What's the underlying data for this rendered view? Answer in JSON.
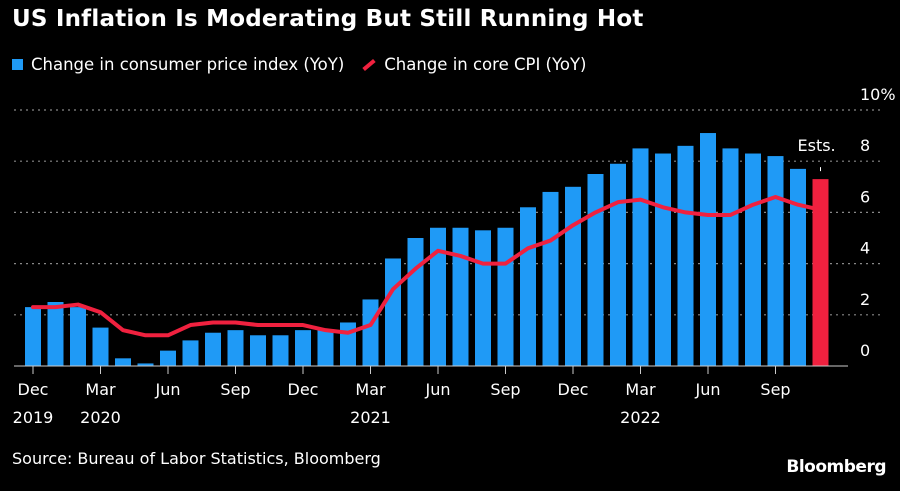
{
  "title": "US Inflation Is Moderating But Still Running Hot",
  "legend": {
    "bar_label": "Change in consumer price index (YoY)",
    "line_label": "Change in core CPI (YoY)"
  },
  "source": "Source: Bureau of Labor Statistics, Bloomberg",
  "logo": "Bloomberg",
  "colors": {
    "bar": "#1f9af6",
    "line": "#f0213f",
    "estimate": "#f0213f"
  },
  "chart_data": {
    "type": "bar",
    "title": "US Inflation Is Moderating But Still Running Hot",
    "months": [
      "Dec 2019",
      "Jan 2020",
      "Feb 2020",
      "Mar 2020",
      "Apr 2020",
      "May 2020",
      "Jun 2020",
      "Jul 2020",
      "Aug 2020",
      "Sep 2020",
      "Oct 2020",
      "Nov 2020",
      "Dec 2020",
      "Jan 2021",
      "Feb 2021",
      "Mar 2021",
      "Apr 2021",
      "May 2021",
      "Jun 2021",
      "Jul 2021",
      "Aug 2021",
      "Sep 2021",
      "Oct 2021",
      "Nov 2021",
      "Dec 2021",
      "Jan 2022",
      "Feb 2022",
      "Mar 2022",
      "Apr 2022",
      "May 2022",
      "Jun 2022",
      "Jul 2022",
      "Aug 2022",
      "Sep 2022",
      "Oct 2022",
      "Nov 2022"
    ],
    "series": [
      {
        "name": "Change in consumer price index (YoY)",
        "type": "bar",
        "values": [
          2.3,
          2.5,
          2.3,
          1.5,
          0.3,
          0.1,
          0.6,
          1.0,
          1.3,
          1.4,
          1.2,
          1.2,
          1.4,
          1.4,
          1.7,
          2.6,
          4.2,
          5.0,
          5.4,
          5.4,
          5.3,
          5.4,
          6.2,
          6.8,
          7.0,
          7.5,
          7.9,
          8.5,
          8.3,
          8.6,
          9.1,
          8.5,
          8.3,
          8.2,
          7.7,
          7.3
        ]
      },
      {
        "name": "Change in core CPI (YoY)",
        "type": "line",
        "values": [
          2.3,
          2.3,
          2.4,
          2.1,
          1.4,
          1.2,
          1.2,
          1.6,
          1.7,
          1.7,
          1.6,
          1.6,
          1.6,
          1.4,
          1.3,
          1.6,
          3.0,
          3.8,
          4.5,
          4.3,
          4.0,
          4.0,
          4.6,
          4.9,
          5.5,
          6.0,
          6.4,
          6.5,
          6.2,
          6.0,
          5.9,
          5.9,
          6.3,
          6.6,
          6.3,
          6.1
        ]
      }
    ],
    "estimate_index": 35,
    "annotation": "Ests.",
    "ylim": [
      0,
      10
    ],
    "yticks": [
      "0",
      "2",
      "4",
      "6",
      "8",
      "10%"
    ],
    "ytick_values": [
      0,
      2,
      4,
      6,
      8,
      10
    ],
    "xticks": [
      {
        "index": 0,
        "month": "Dec",
        "year": "2019"
      },
      {
        "index": 3,
        "month": "Mar",
        "year": "2020"
      },
      {
        "index": 6,
        "month": "Jun",
        "year": ""
      },
      {
        "index": 9,
        "month": "Sep",
        "year": ""
      },
      {
        "index": 12,
        "month": "Dec",
        "year": ""
      },
      {
        "index": 15,
        "month": "Mar",
        "year": "2021"
      },
      {
        "index": 18,
        "month": "Jun",
        "year": ""
      },
      {
        "index": 21,
        "month": "Sep",
        "year": ""
      },
      {
        "index": 24,
        "month": "Dec",
        "year": ""
      },
      {
        "index": 27,
        "month": "Mar",
        "year": "2022"
      },
      {
        "index": 30,
        "month": "Jun",
        "year": ""
      },
      {
        "index": 33,
        "month": "Sep",
        "year": ""
      }
    ],
    "grid": true,
    "legend_position": "top-left",
    "yaxis_side": "right"
  }
}
